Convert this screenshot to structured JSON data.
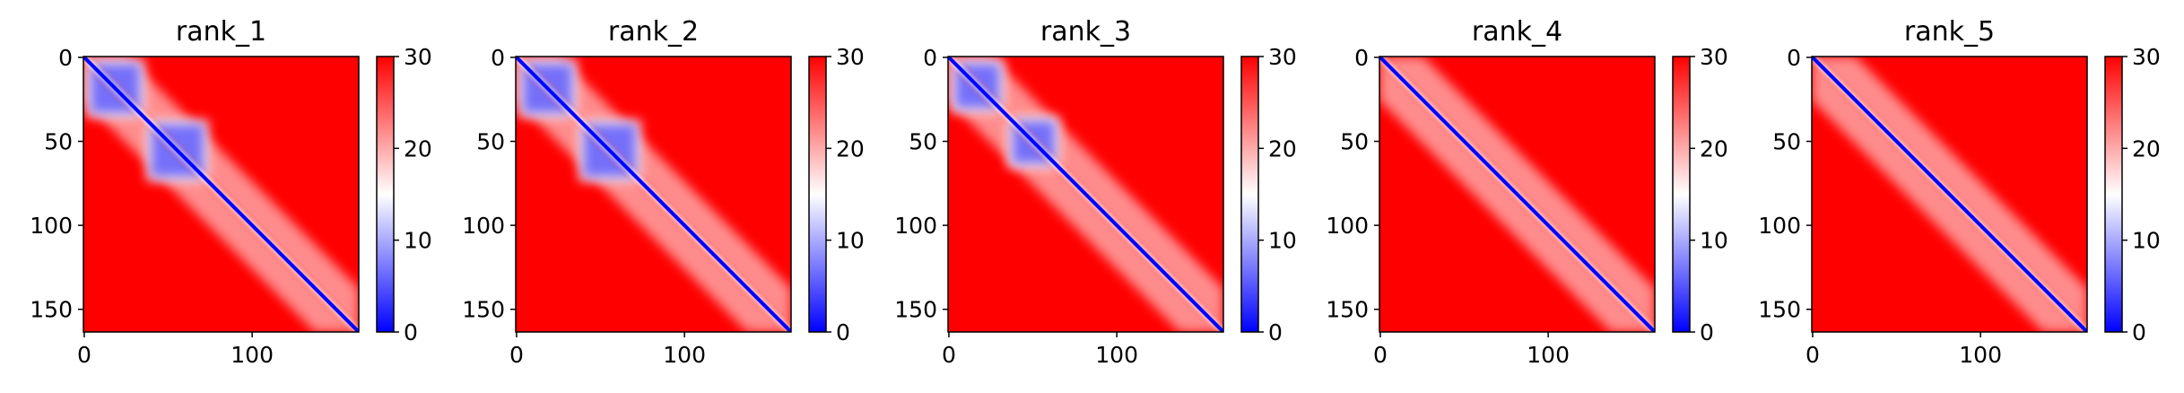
{
  "chart_data": {
    "type": "heatmap",
    "colormap": "bwr",
    "colormap_stops": [
      "#0000ff",
      "#ffffff",
      "#ff0000"
    ],
    "value_range": [
      0,
      30
    ],
    "colorbar_ticks": [
      "0",
      "10",
      "20",
      "30"
    ],
    "x_ticks": [
      "0",
      "100"
    ],
    "y_ticks": [
      "0",
      "50",
      "100",
      "150"
    ],
    "matrix_size": 164,
    "panels": [
      {
        "title": "rank_1",
        "blue_blocks": [
          [
            0,
            38
          ],
          [
            36,
            76
          ]
        ]
      },
      {
        "title": "rank_2",
        "blue_blocks": [
          [
            0,
            38
          ],
          [
            36,
            76
          ]
        ]
      },
      {
        "title": "rank_3",
        "blue_blocks": [
          [
            0,
            35
          ],
          [
            34,
            68
          ]
        ]
      },
      {
        "title": "rank_4",
        "blue_blocks": []
      },
      {
        "title": "rank_5",
        "blue_blocks": []
      }
    ]
  }
}
